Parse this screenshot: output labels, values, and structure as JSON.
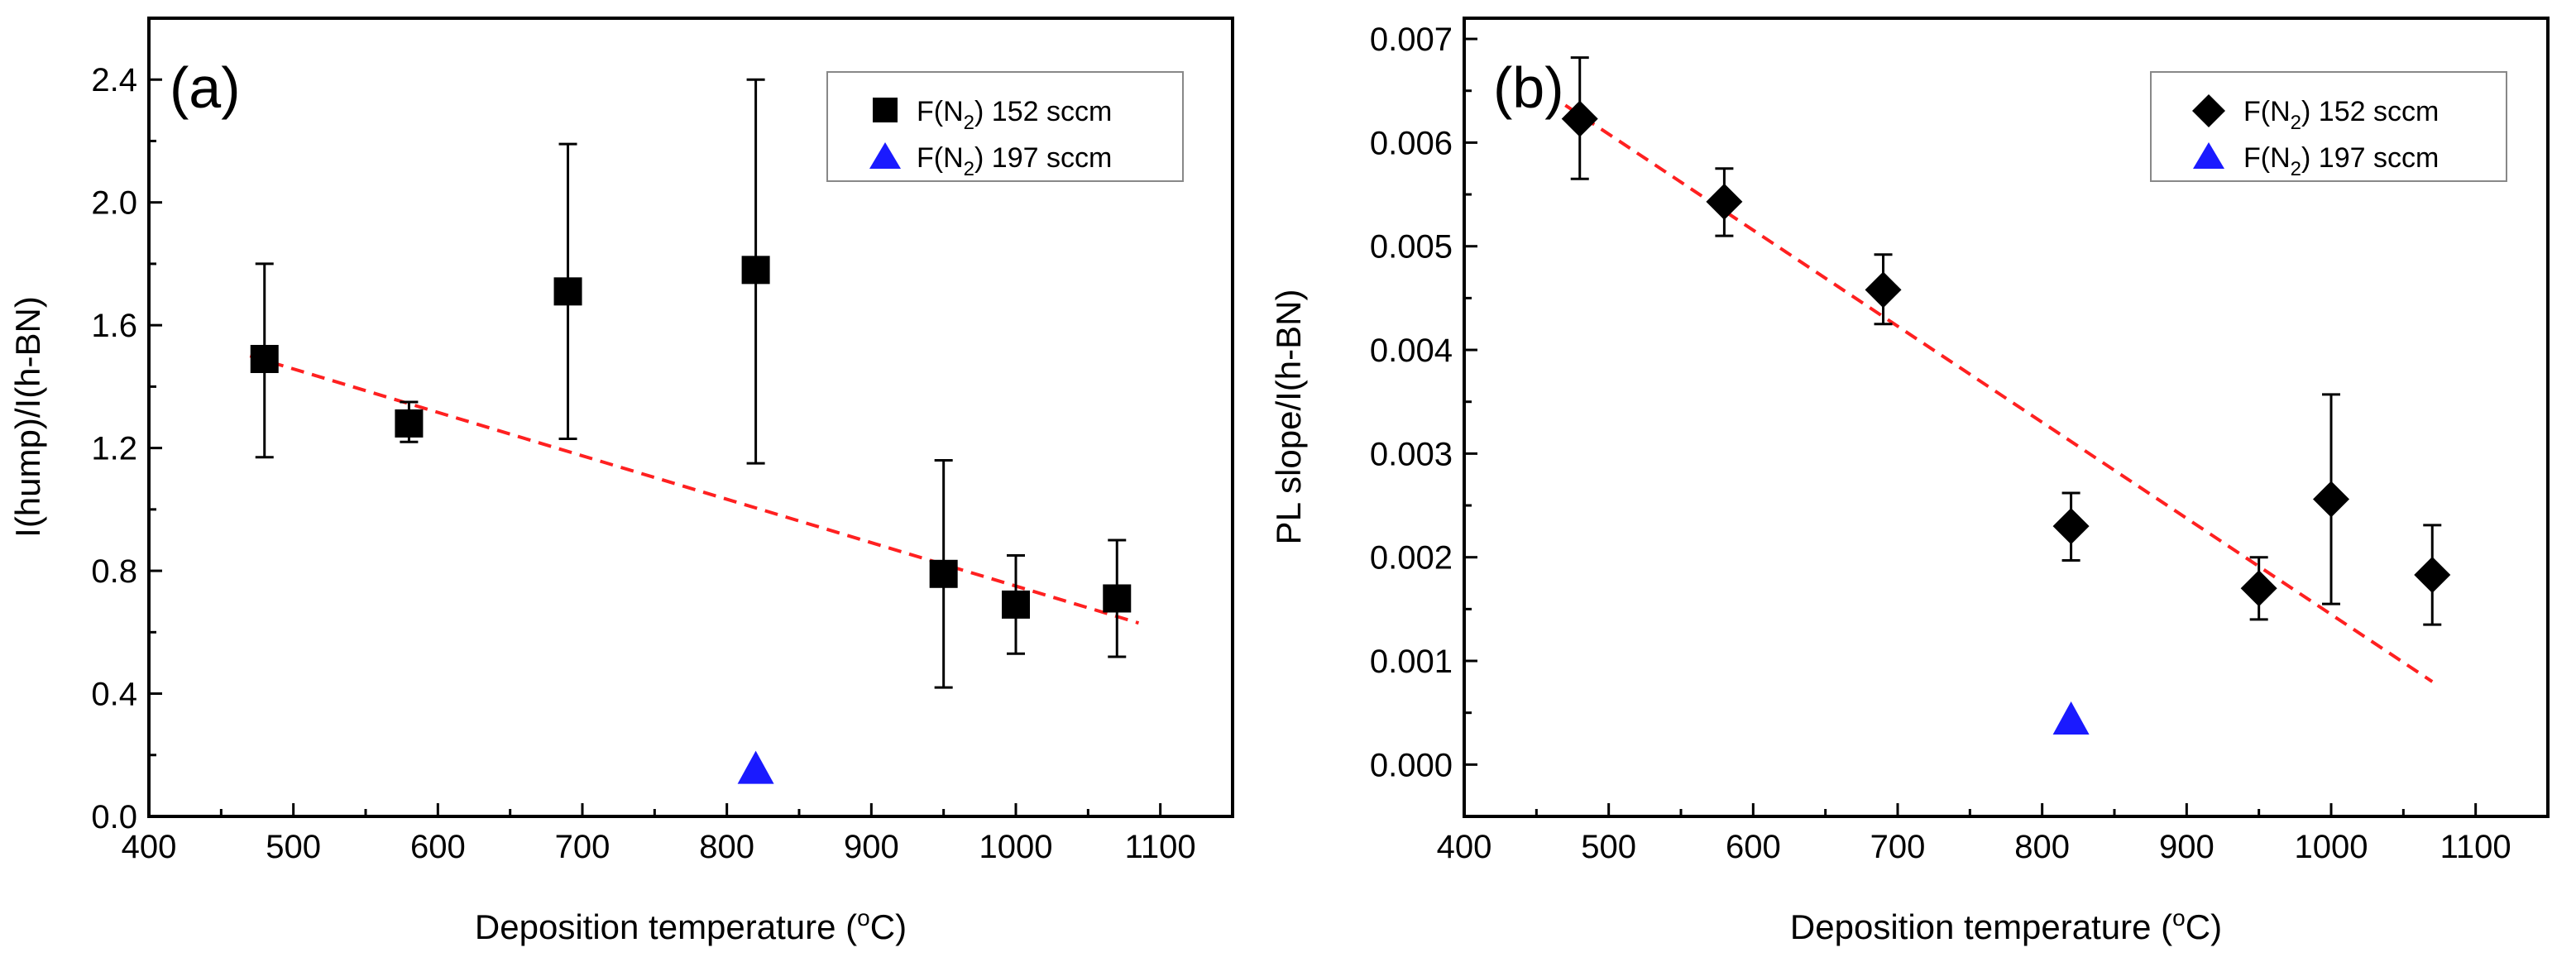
{
  "chart_data": [
    {
      "type": "scatter",
      "panel_label": "(a)",
      "xlabel": {
        "main": "Deposition temperature (",
        "sup": "o",
        "tail": "C)"
      },
      "ylabel": "I(hump)/I(h-BN)",
      "xlim": [
        400,
        1150
      ],
      "ylim": [
        0,
        2.6
      ],
      "xticks": [
        400,
        500,
        600,
        700,
        800,
        900,
        1000,
        1100
      ],
      "xtick_labels": [
        "400",
        "500",
        "600",
        "700",
        "800",
        "900",
        "1000",
        "1100"
      ],
      "yticks": [
        0,
        0.4,
        0.8,
        1.2,
        1.6,
        2.0,
        2.4
      ],
      "ytick_labels": [
        "0.0",
        "0.4",
        "0.8",
        "1.2",
        "1.6",
        "2.0",
        "2.4"
      ],
      "legend_position": "top-right",
      "series": [
        {
          "name": "F(N2) 152 sccm",
          "legend": {
            "main": "F(N",
            "sub": "2",
            "tail": ") 152 sccm"
          },
          "marker": "square",
          "color": "#000000",
          "x": [
            480,
            580,
            690,
            820,
            950,
            1000,
            1070
          ],
          "y": [
            1.49,
            1.28,
            1.71,
            1.78,
            0.79,
            0.69,
            0.71
          ],
          "err_low": [
            1.17,
            1.22,
            1.23,
            1.15,
            0.42,
            0.53,
            0.52
          ],
          "err_high": [
            1.8,
            1.35,
            2.19,
            2.4,
            1.16,
            0.85,
            0.9
          ]
        },
        {
          "name": "F(N2) 197 sccm",
          "legend": {
            "main": "F(N",
            "sub": "2",
            "tail": ") 197 sccm"
          },
          "marker": "triangle",
          "color": "#1a1aff",
          "x": [
            820
          ],
          "y": [
            0.16
          ]
        }
      ],
      "fit_line": {
        "x": [
          470,
          1085
        ],
        "y": [
          1.5,
          0.63
        ],
        "color": "#ff2020",
        "style": "dashed"
      }
    },
    {
      "type": "scatter",
      "panel_label": "(b)",
      "xlabel": {
        "main": "Deposition temperature (",
        "sup": "o",
        "tail": "C)"
      },
      "ylabel": "PL slope/I(h-BN)",
      "xlim": [
        400,
        1150
      ],
      "ylim": [
        -0.0005,
        0.0072
      ],
      "xticks": [
        400,
        500,
        600,
        700,
        800,
        900,
        1000,
        1100
      ],
      "xtick_labels": [
        "400",
        "500",
        "600",
        "700",
        "800",
        "900",
        "1000",
        "1100"
      ],
      "yticks": [
        0,
        0.001,
        0.002,
        0.003,
        0.004,
        0.005,
        0.006,
        0.007
      ],
      "ytick_labels": [
        "0.000",
        "0.001",
        "0.002",
        "0.003",
        "0.004",
        "0.005",
        "0.006",
        "0.007"
      ],
      "legend_position": "top-right",
      "series": [
        {
          "name": "F(N2) 152 sccm",
          "legend": {
            "main": "F(N",
            "sub": "2",
            "tail": ") 152 sccm"
          },
          "marker": "diamond",
          "color": "#000000",
          "x": [
            480,
            580,
            690,
            820,
            950,
            1000,
            1070
          ],
          "y": [
            0.00623,
            0.00543,
            0.00458,
            0.0023,
            0.0017,
            0.00256,
            0.00183
          ],
          "err_low": [
            0.00565,
            0.0051,
            0.00425,
            0.00197,
            0.0014,
            0.00155,
            0.00135
          ],
          "err_high": [
            0.00682,
            0.00575,
            0.00492,
            0.00262,
            0.002,
            0.00357,
            0.00231
          ]
        },
        {
          "name": "F(N2) 197 sccm",
          "legend": {
            "main": "F(N",
            "sub": "2",
            "tail": ") 197 sccm"
          },
          "marker": "triangle",
          "color": "#1a1aff",
          "x": [
            820
          ],
          "y": [
            0.00045
          ]
        }
      ],
      "fit_line": {
        "x": [
          470,
          1070
        ],
        "y": [
          0.00636,
          0.0008
        ],
        "color": "#ff2020",
        "style": "dashed"
      }
    }
  ]
}
